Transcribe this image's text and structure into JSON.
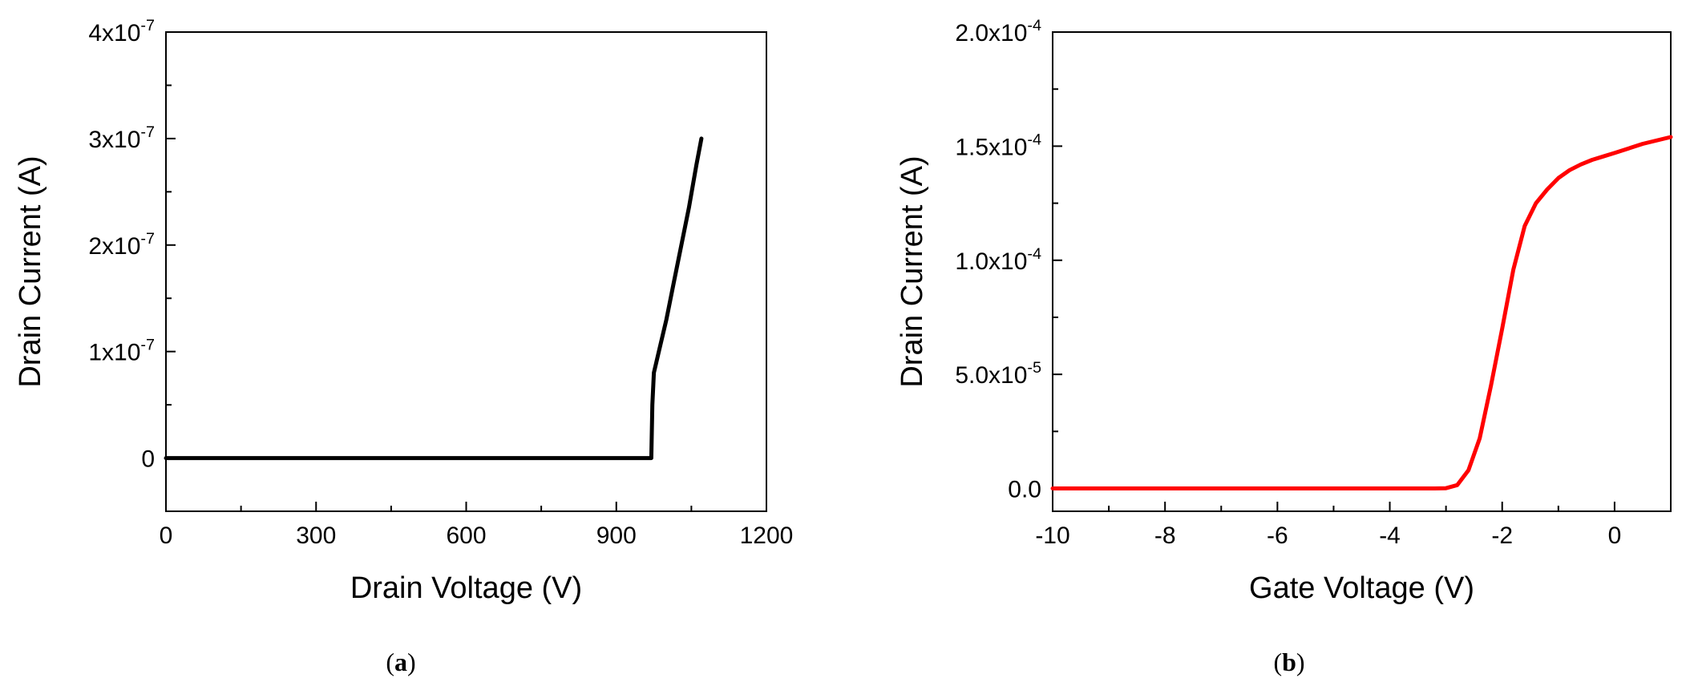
{
  "chart_data": [
    {
      "type": "line",
      "panel": "a",
      "xlabel": "Drain Voltage (V)",
      "ylabel": "Drain Current (A)",
      "xlim": [
        0,
        1200
      ],
      "ylim": [
        -5e-08,
        4e-07
      ],
      "xticks": [
        0,
        300,
        600,
        900,
        1200
      ],
      "xtick_labels": [
        "0",
        "300",
        "600",
        "900",
        "1200"
      ],
      "yticks": [
        0,
        1e-07,
        2e-07,
        3e-07,
        4e-07
      ],
      "ytick_labels": [
        {
          "mant": "0",
          "exp": ""
        },
        {
          "mant": "1x10",
          "exp": "-7"
        },
        {
          "mant": "2x10",
          "exp": "-7"
        },
        {
          "mant": "3x10",
          "exp": "-7"
        },
        {
          "mant": "4x10",
          "exp": "-7"
        }
      ],
      "grid": false,
      "series": [
        {
          "color": "#000000",
          "x": [
            0,
            200,
            400,
            600,
            800,
            970,
            972,
            975,
            985,
            1000,
            1015,
            1030,
            1045,
            1060,
            1070
          ],
          "y": [
            0,
            0,
            0,
            0,
            0,
            0,
            5e-08,
            8e-08,
            1e-07,
            1.3e-07,
            1.65e-07,
            2e-07,
            2.35e-07,
            2.75e-07,
            3e-07
          ]
        }
      ]
    },
    {
      "type": "line",
      "panel": "b",
      "xlabel": "Gate Voltage (V)",
      "ylabel": "Drain Current (A)",
      "xlim": [
        -10,
        1
      ],
      "ylim": [
        -1e-05,
        0.0002
      ],
      "xticks": [
        -10,
        -8,
        -6,
        -4,
        -2,
        0
      ],
      "xtick_labels": [
        "-10",
        "-8",
        "-6",
        "-4",
        "-2",
        "0"
      ],
      "yticks": [
        0,
        5e-05,
        0.0001,
        0.00015,
        0.0002
      ],
      "ytick_labels": [
        {
          "mant": "0.0",
          "exp": ""
        },
        {
          "mant": "5.0x10",
          "exp": "-5"
        },
        {
          "mant": "1.0x10",
          "exp": "-4"
        },
        {
          "mant": "1.5x10",
          "exp": "-4"
        },
        {
          "mant": "2.0x10",
          "exp": "-4"
        }
      ],
      "grid": false,
      "series": [
        {
          "color": "#ff0000",
          "x": [
            -10,
            -8,
            -6,
            -4,
            -3.2,
            -3.0,
            -2.8,
            -2.6,
            -2.4,
            -2.2,
            -2.0,
            -1.8,
            -1.6,
            -1.4,
            -1.2,
            -1.0,
            -0.8,
            -0.6,
            -0.4,
            -0.2,
            0,
            0.5,
            1.0
          ],
          "y": [
            0,
            0,
            0,
            0,
            0,
            1e-07,
            1.5e-06,
            8e-06,
            2.2e-05,
            4.5e-05,
            7e-05,
            9.6e-05,
            0.000115,
            0.000125,
            0.000131,
            0.000136,
            0.0001395,
            0.000142,
            0.000144,
            0.0001455,
            0.000147,
            0.000151,
            0.000154
          ]
        }
      ]
    }
  ],
  "captions": [
    {
      "open": "(",
      "letter": "a",
      "close": ")"
    },
    {
      "open": "(",
      "letter": "b",
      "close": ")"
    }
  ]
}
